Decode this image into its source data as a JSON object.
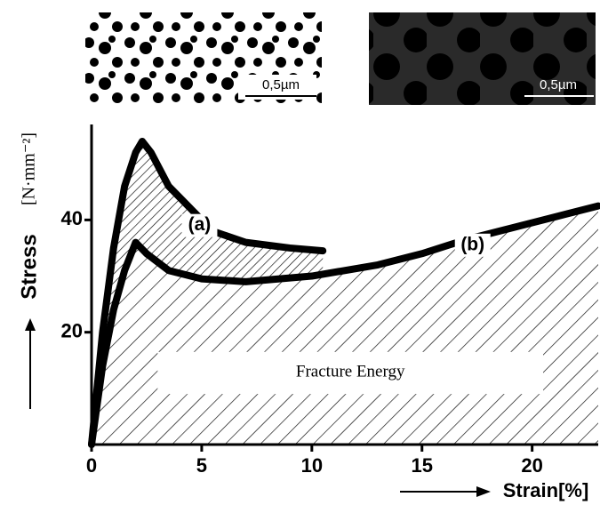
{
  "chart_data": {
    "type": "line",
    "xlabel": "Strain[%]",
    "ylabel": "Stress",
    "yunit": "[N·mm⁻²]",
    "annotation": "Fracture Energy",
    "scale_bars": [
      "0,5µm",
      "0,5µm"
    ],
    "xlim": [
      0,
      23
    ],
    "ylim": [
      0,
      57
    ],
    "xticks": [
      0,
      5,
      10,
      15,
      20
    ],
    "yticks": [
      20,
      40
    ],
    "series": [
      {
        "name": "(a)",
        "color": "#000000",
        "x": [
          0,
          0.5,
          1,
          1.5,
          2,
          2.3,
          2.7,
          3.5,
          4.5,
          5.5,
          7,
          9,
          10.5
        ],
        "values": [
          0,
          20,
          35,
          46,
          52,
          54,
          52,
          46,
          42,
          38,
          36,
          35,
          34.5
        ]
      },
      {
        "name": "(b)",
        "color": "#000000",
        "x": [
          0,
          0.5,
          1,
          1.5,
          2,
          2.5,
          3.5,
          5,
          7,
          10,
          13,
          15,
          17,
          19,
          21,
          23
        ],
        "values": [
          0,
          14,
          24,
          31,
          36,
          34,
          31,
          29.5,
          29,
          30,
          32,
          34,
          36.5,
          38.5,
          40.5,
          42.5
        ]
      }
    ]
  }
}
